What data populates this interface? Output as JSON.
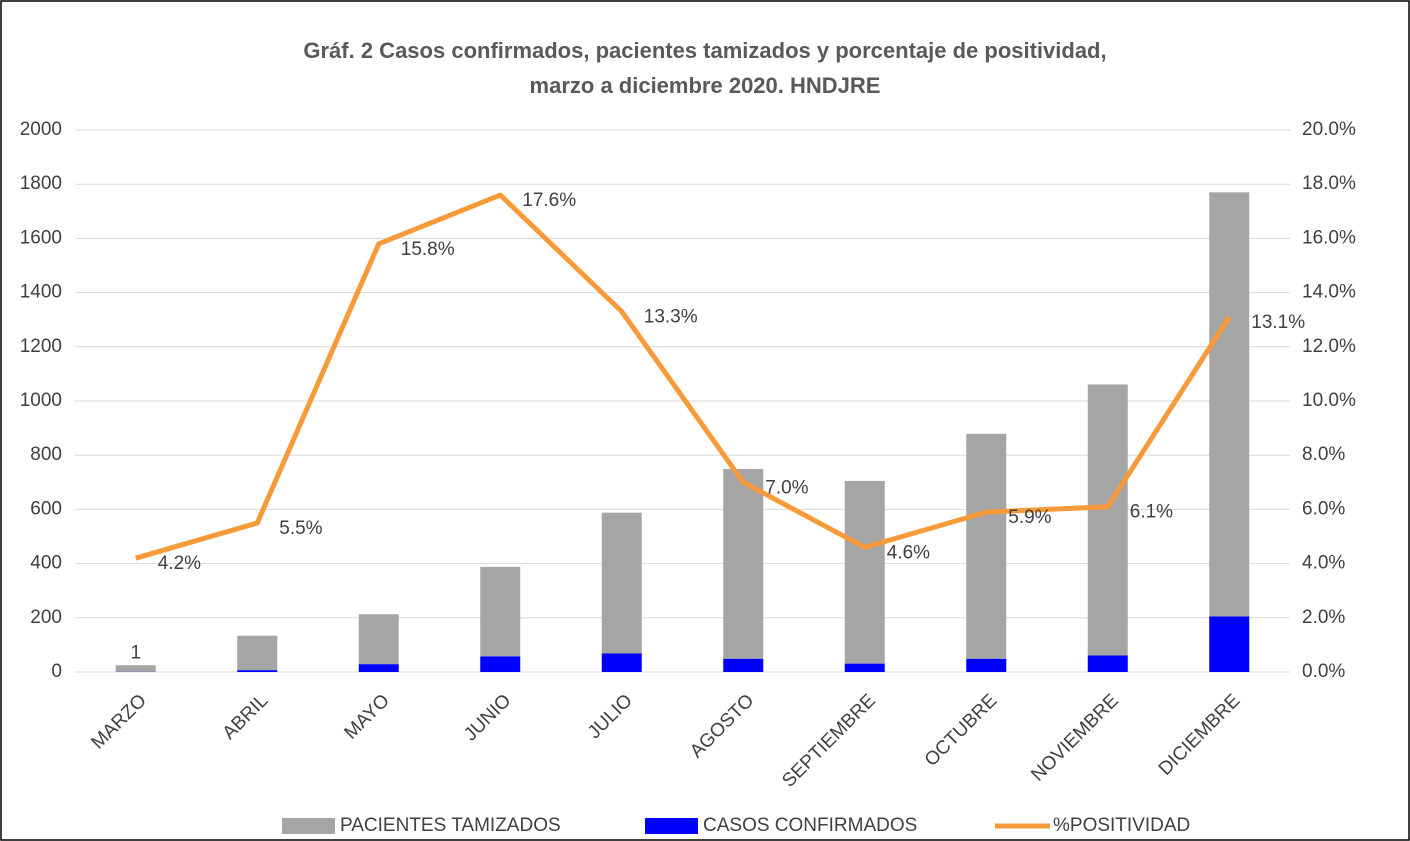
{
  "chart_data": {
    "type": "bar-line",
    "title": [
      "Gráf. 2 Casos confirmados, pacientes tamizados y porcentaje de positividad,",
      "marzo a diciembre 2020. HNDJRE"
    ],
    "categories": [
      "MARZO",
      "ABRIL",
      "MAYO",
      "JUNIO",
      "JULIO",
      "AGOSTO",
      "SEPTIEMBRE",
      "OCTUBRE",
      "NOVIEMBRE",
      "DICIEMBRE"
    ],
    "series": [
      {
        "name": "PACIENTES TAMIZADOS",
        "type": "bar",
        "color": "#a5a5a5",
        "values": [
          24,
          127,
          184,
          330,
          519,
          700,
          674,
          830,
          1000,
          1565
        ]
      },
      {
        "name": "CASOS CONFIRMADOS",
        "type": "bar",
        "color": "#0000ff",
        "values": [
          1,
          7,
          29,
          58,
          69,
          49,
          31,
          49,
          61,
          205
        ],
        "data_labels": true
      },
      {
        "name": "%POSITIVIDAD",
        "type": "line",
        "axis": "y2",
        "color": "#f79a3a",
        "values": [
          4.2,
          5.5,
          15.8,
          17.6,
          13.3,
          7.0,
          4.6,
          5.9,
          6.1,
          13.1
        ],
        "value_labels": [
          "4.2%",
          "5.5%",
          "15.8%",
          "17.6%",
          "13.3%",
          "7.0%",
          "4.6%",
          "5.9%",
          "6.1%",
          "13.1%"
        ]
      }
    ],
    "stacked": true,
    "ylim": [
      0,
      2000
    ],
    "yticks": [
      0,
      200,
      400,
      600,
      800,
      1000,
      1200,
      1400,
      1600,
      1800,
      2000
    ],
    "y2lim": [
      0,
      20
    ],
    "y2ticks": [
      {
        "value": 0,
        "label": "0.0%"
      },
      {
        "value": 2,
        "label": "2.0%"
      },
      {
        "value": 4,
        "label": "4.0%"
      },
      {
        "value": 6,
        "label": "6.0%"
      },
      {
        "value": 8,
        "label": "8.0%"
      },
      {
        "value": 10,
        "label": "10.0%"
      },
      {
        "value": 12,
        "label": "12.0%"
      },
      {
        "value": 14,
        "label": "14.0%"
      },
      {
        "value": 16,
        "label": "16.0%"
      },
      {
        "value": 18,
        "label": "18.0%"
      },
      {
        "value": 20,
        "label": "20.0%"
      }
    ],
    "grid": true,
    "legend": "bottom"
  }
}
